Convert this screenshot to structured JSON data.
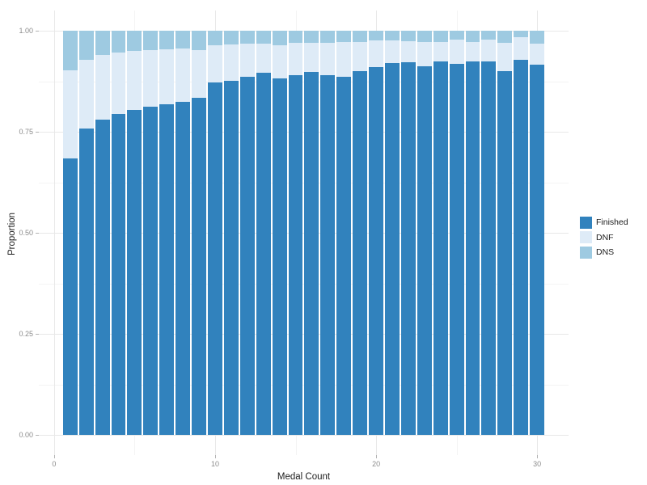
{
  "chart_data": {
    "type": "bar",
    "stacked": true,
    "normalized": true,
    "title": "",
    "xlabel": "Medal Count",
    "ylabel": "Proportion",
    "x": [
      1,
      2,
      3,
      4,
      5,
      6,
      7,
      8,
      9,
      10,
      11,
      12,
      13,
      14,
      15,
      16,
      17,
      18,
      19,
      20,
      21,
      22,
      23,
      24,
      25,
      26,
      27,
      28,
      29,
      30
    ],
    "series": [
      {
        "name": "Finished",
        "color": "#3182bd",
        "values": [
          0.685,
          0.758,
          0.78,
          0.794,
          0.805,
          0.813,
          0.819,
          0.825,
          0.835,
          0.873,
          0.876,
          0.887,
          0.896,
          0.882,
          0.891,
          0.899,
          0.89,
          0.887,
          0.901,
          0.911,
          0.92,
          0.923,
          0.913,
          0.925,
          0.919,
          0.925,
          0.925,
          0.9,
          0.929,
          0.917
        ]
      },
      {
        "name": "DNF",
        "color": "#deebf7",
        "values": [
          0.217,
          0.17,
          0.161,
          0.152,
          0.145,
          0.14,
          0.135,
          0.131,
          0.117,
          0.092,
          0.091,
          0.082,
          0.072,
          0.083,
          0.08,
          0.071,
          0.081,
          0.086,
          0.072,
          0.065,
          0.056,
          0.052,
          0.06,
          0.048,
          0.059,
          0.048,
          0.053,
          0.071,
          0.056,
          0.052
        ]
      },
      {
        "name": "DNS",
        "color": "#9ecae1",
        "values": [
          0.098,
          0.072,
          0.059,
          0.054,
          0.05,
          0.047,
          0.046,
          0.044,
          0.048,
          0.035,
          0.033,
          0.031,
          0.032,
          0.035,
          0.029,
          0.03,
          0.029,
          0.027,
          0.027,
          0.024,
          0.024,
          0.025,
          0.027,
          0.027,
          0.022,
          0.027,
          0.022,
          0.029,
          0.015,
          0.031
        ]
      }
    ],
    "x_ticks": [
      0,
      10,
      20,
      30
    ],
    "x_tick_labels": [
      "0",
      "10",
      "20",
      "30"
    ],
    "y_ticks": [
      0,
      0.25,
      0.5,
      0.75,
      1.0
    ],
    "y_tick_labels": [
      "0.00",
      "0.25",
      "0.50",
      "0.75",
      "1.00"
    ],
    "xlim": [
      -0.95,
      31.95
    ],
    "ylim": [
      -0.05,
      1.05
    ],
    "bar_rel_width": 0.9,
    "grid": "major+minor",
    "legend_position": "right",
    "legend": [
      "Finished",
      "DNF",
      "DNS"
    ]
  },
  "colors": {
    "background": "#ffffff",
    "grid_major": "#e8e8e8",
    "grid_minor": "#f4f4f4",
    "tick_mark": "#b3b3b3",
    "tick_text": "#8c8c8c",
    "axis_title_text": "#1c1c1c",
    "finished": "#3182bd",
    "dnf": "#deebf7",
    "dns": "#9ecae1"
  }
}
